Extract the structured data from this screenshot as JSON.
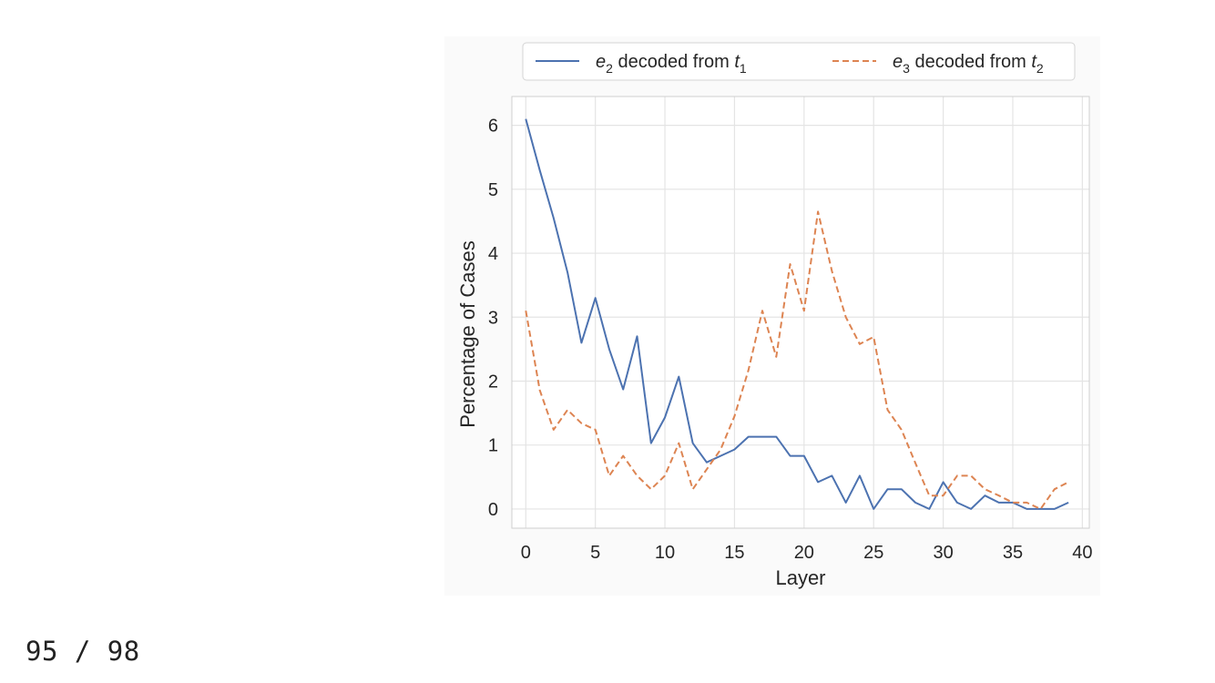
{
  "page_counter": "95 / 98",
  "chart_data": {
    "type": "line",
    "xlabel": "Layer",
    "ylabel": "Percentage of Cases",
    "xlim": [
      -1,
      40.5
    ],
    "ylim": [
      -0.3,
      6.45
    ],
    "xticks": [
      0,
      5,
      10,
      15,
      20,
      25,
      30,
      35,
      40
    ],
    "yticks": [
      0,
      1,
      2,
      3,
      4,
      5,
      6
    ],
    "grid": true,
    "legend_position": "top",
    "x": [
      0,
      1,
      2,
      3,
      4,
      5,
      6,
      7,
      8,
      9,
      10,
      11,
      12,
      13,
      14,
      15,
      16,
      17,
      18,
      19,
      20,
      21,
      22,
      23,
      24,
      25,
      26,
      27,
      28,
      29,
      30,
      31,
      32,
      33,
      34,
      35,
      36,
      37,
      38,
      39
    ],
    "series": [
      {
        "name": "e2 decoded from t1",
        "legend": {
          "var": "e",
          "var_sub": "2",
          "mid": " decoded from ",
          "var2": "t",
          "var2_sub": "1"
        },
        "color": "#4c72b0",
        "style": "solid",
        "values": [
          6.1,
          5.3,
          4.55,
          3.7,
          2.6,
          3.3,
          2.5,
          1.87,
          2.7,
          1.03,
          1.43,
          2.07,
          1.03,
          0.73,
          0.83,
          0.93,
          1.13,
          1.13,
          1.13,
          0.83,
          0.83,
          0.42,
          0.52,
          0.1,
          0.52,
          0.0,
          0.31,
          0.31,
          0.1,
          0.0,
          0.42,
          0.1,
          0.0,
          0.21,
          0.1,
          0.1,
          0.0,
          0.0,
          0.0,
          0.1
        ]
      },
      {
        "name": "e3 decoded from t2",
        "legend": {
          "var": "e",
          "var_sub": "3",
          "mid": " decoded from ",
          "var2": "t",
          "var2_sub": "2"
        },
        "color": "#dd8452",
        "style": "dashed",
        "values": [
          3.1,
          1.86,
          1.24,
          1.55,
          1.34,
          1.24,
          0.52,
          0.83,
          0.52,
          0.31,
          0.52,
          1.03,
          0.31,
          0.62,
          0.93,
          1.45,
          2.17,
          3.1,
          2.38,
          3.83,
          3.1,
          4.65,
          3.72,
          3.0,
          2.58,
          2.69,
          1.55,
          1.24,
          0.72,
          0.21,
          0.21,
          0.52,
          0.52,
          0.31,
          0.21,
          0.1,
          0.1,
          0.0,
          0.31,
          0.42
        ]
      }
    ]
  }
}
